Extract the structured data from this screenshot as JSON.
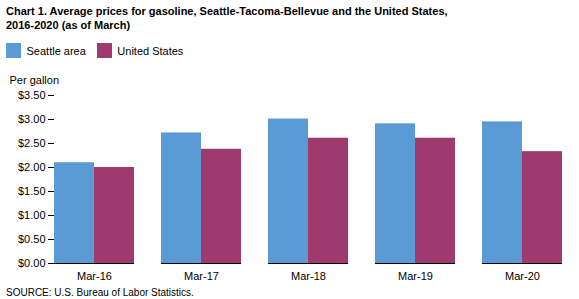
{
  "chart_data": {
    "type": "bar",
    "title": "Chart 1. Average prices for gasoline, Seattle-Tacoma-Bellevue and the United States,\n2016-2020  (as of March)",
    "y_label": "Per gallon",
    "caption": "SOURCE: U.S. Bureau of Labor Statistics.",
    "categories": [
      "Mar-16",
      "Mar-17",
      "Mar-18",
      "Mar-19",
      "Mar-20"
    ],
    "series": [
      {
        "name": "Seattle area",
        "color": "#5B9BD5",
        "values": [
          2.1,
          2.72,
          3.01,
          2.91,
          2.95
        ]
      },
      {
        "name": "United States",
        "color": "#9E3A6E",
        "values": [
          2.0,
          2.38,
          2.61,
          2.61,
          2.33
        ]
      }
    ],
    "ylim": [
      0.0,
      3.5
    ],
    "yticks": [
      {
        "value": 0.0,
        "label": "$0.00"
      },
      {
        "value": 0.5,
        "label": "$0.50"
      },
      {
        "value": 1.0,
        "label": "$1.00"
      },
      {
        "value": 1.5,
        "label": "$1.50"
      },
      {
        "value": 2.0,
        "label": "$2.00"
      },
      {
        "value": 2.5,
        "label": "$2.50"
      },
      {
        "value": 3.0,
        "label": "$3.00"
      },
      {
        "value": 3.5,
        "label": "$3.50"
      }
    ],
    "grid": false,
    "legend": "top"
  }
}
